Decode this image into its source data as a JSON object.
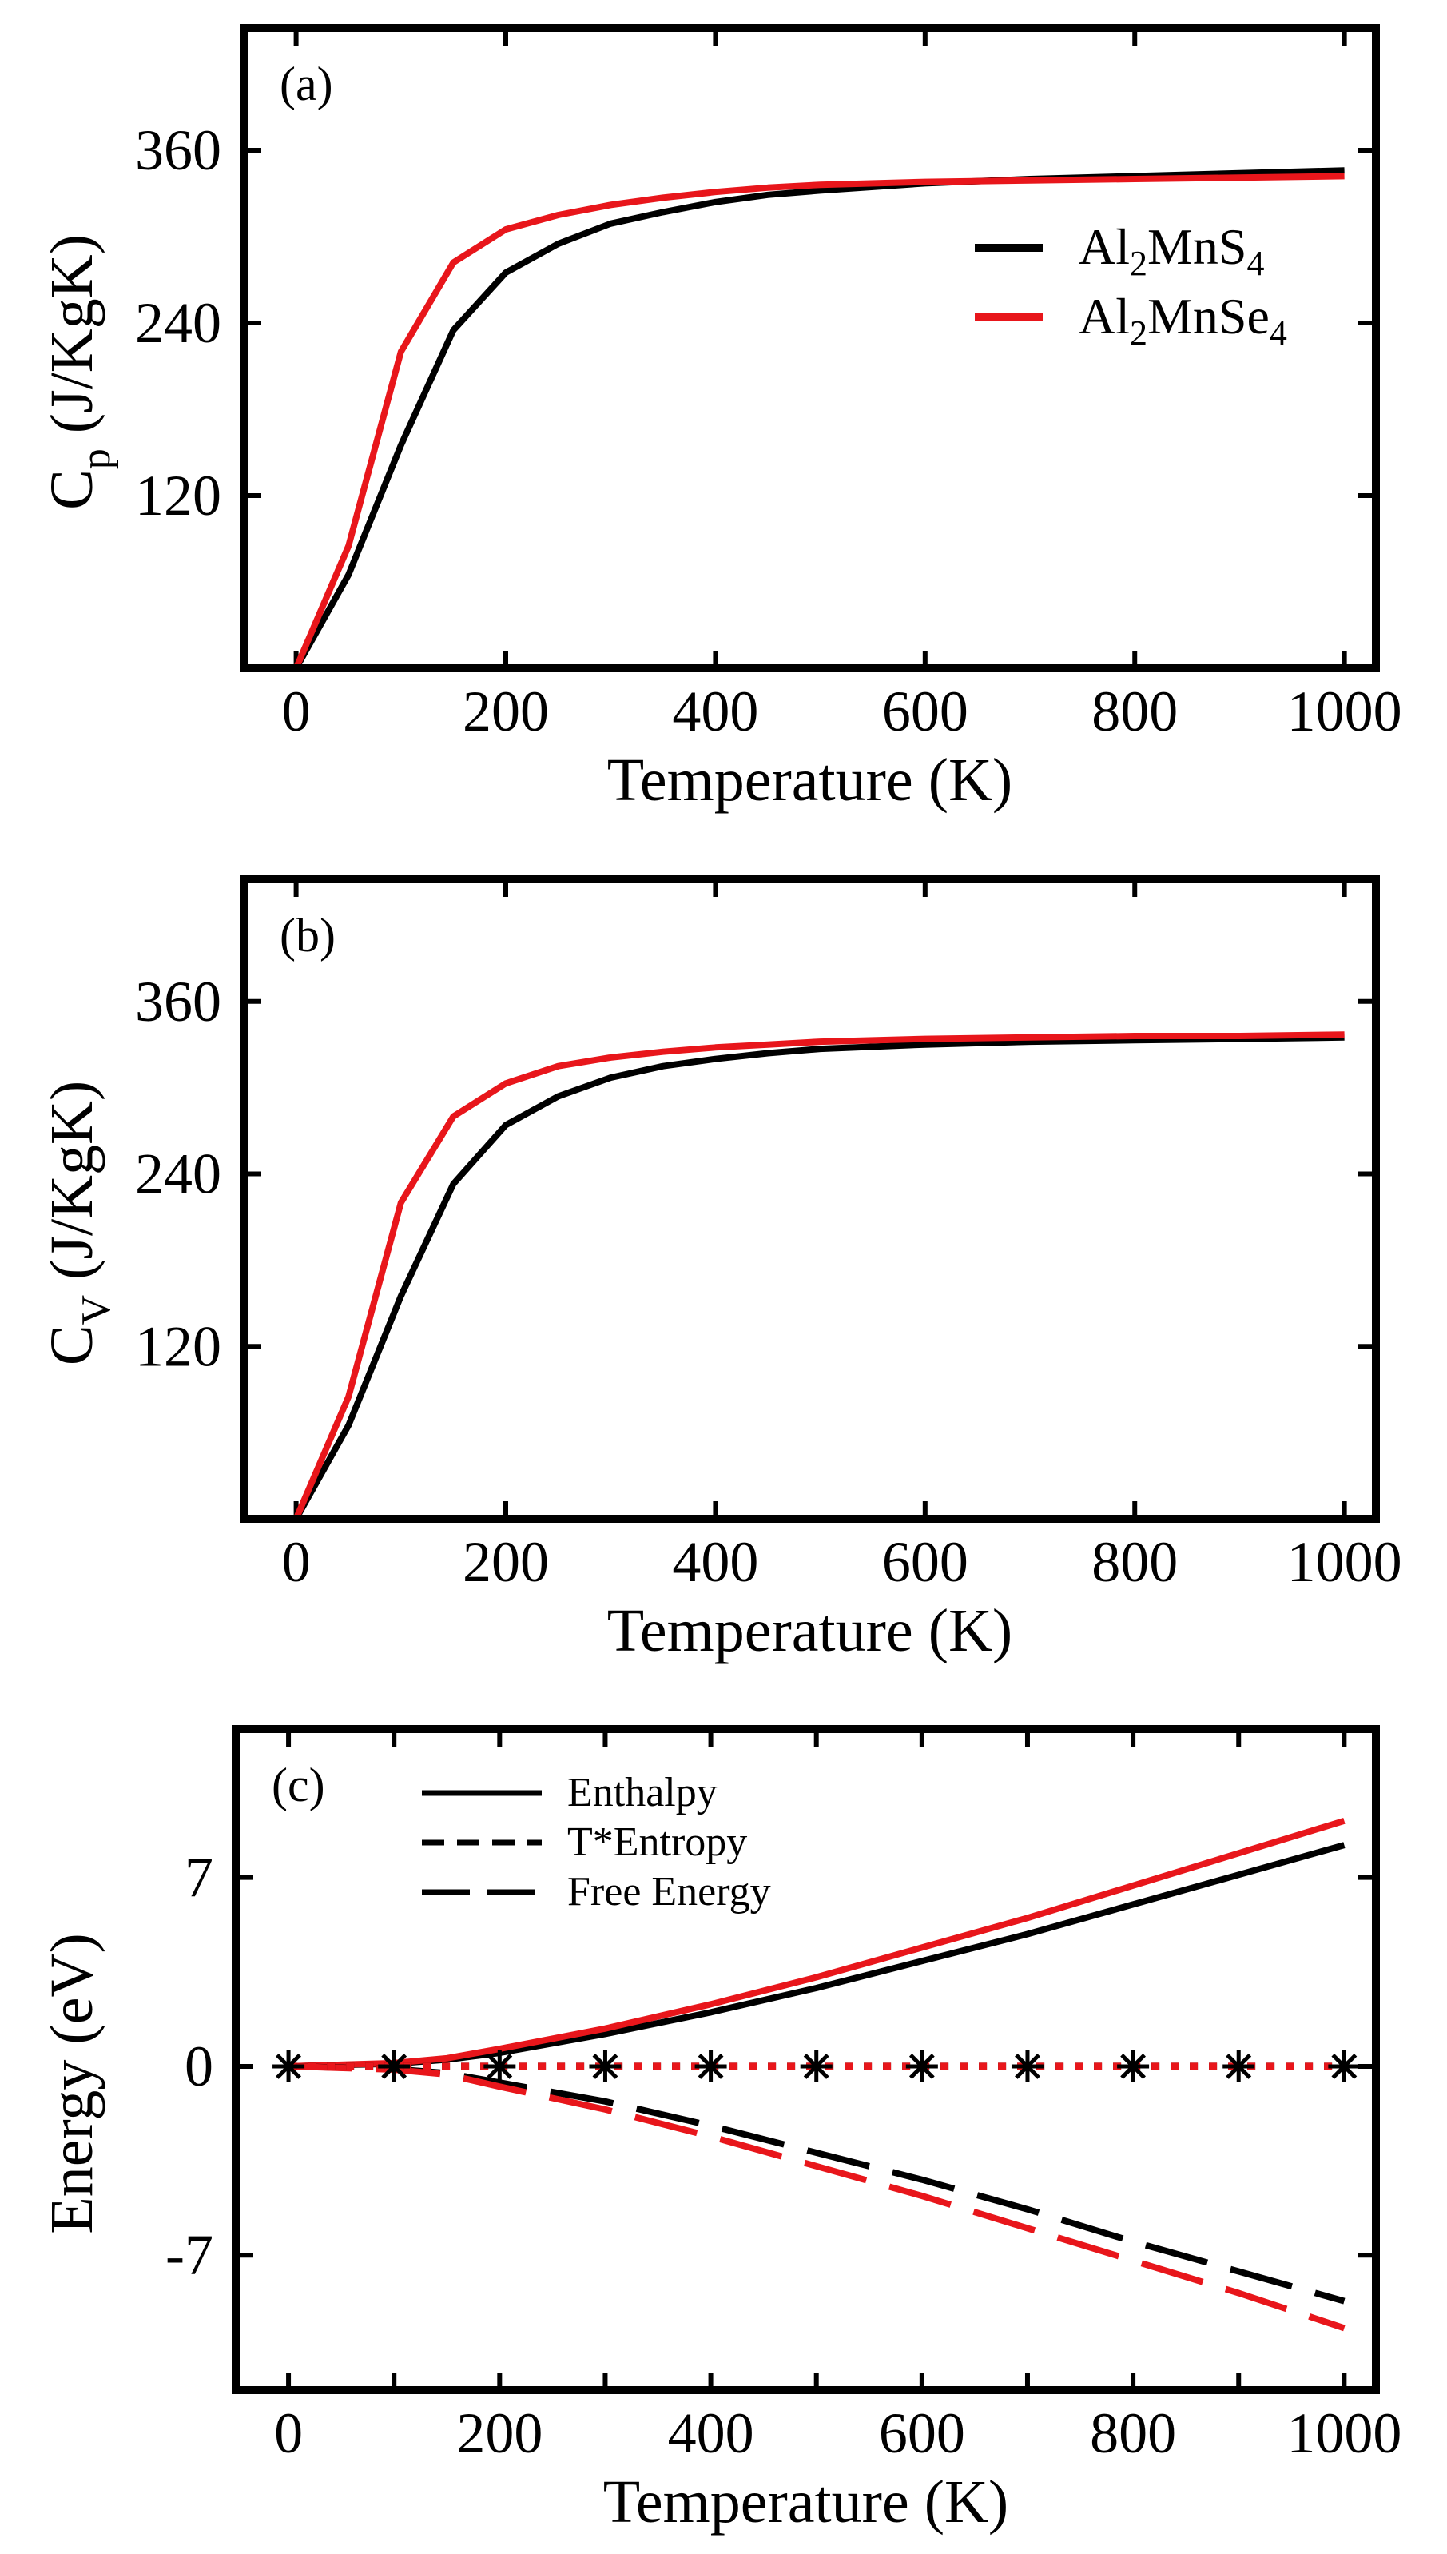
{
  "colors": {
    "black_series": "#000000",
    "red_series": "#e8161b"
  },
  "chart_data": [
    {
      "panel": "(a)",
      "type": "line",
      "xlabel": "Temperature (K)",
      "ylabel_main": "C",
      "ylabel_sub": "p",
      "ylabel_unit": " (J/KgK)",
      "xlim": [
        -50,
        1030
      ],
      "ylim": [
        0,
        445
      ],
      "xticks": [
        0,
        200,
        400,
        600,
        800,
        1000
      ],
      "yticks": [
        120,
        240,
        360
      ],
      "legend": {
        "position": "right",
        "items": [
          {
            "base": "Al",
            "s1": "2",
            "mid": "MnS",
            "s2": "4",
            "color": "#000000"
          },
          {
            "base": "Al",
            "s1": "2",
            "mid": "MnSe",
            "s2": "4",
            "color": "#e8161b"
          }
        ]
      },
      "x": [
        0,
        50,
        100,
        150,
        200,
        250,
        300,
        350,
        400,
        450,
        500,
        600,
        700,
        800,
        900,
        1000
      ],
      "series": [
        {
          "name": "Al2MnS4",
          "color": "#000000",
          "values": [
            0,
            65,
            155,
            235,
            275,
            295,
            309,
            317,
            324,
            329,
            332,
            337,
            340,
            342,
            344,
            346
          ]
        },
        {
          "name": "Al2MnSe4",
          "color": "#e8161b",
          "values": [
            0,
            85,
            220,
            282,
            305,
            315,
            322,
            327,
            331,
            334,
            336,
            338,
            339,
            340,
            341,
            342
          ]
        }
      ]
    },
    {
      "panel": "(b)",
      "type": "line",
      "xlabel": "Temperature (K)",
      "ylabel_main": "C",
      "ylabel_sub": "V",
      "ylabel_unit": " (J/KgK)",
      "xlim": [
        -50,
        1030
      ],
      "ylim": [
        0,
        445
      ],
      "xticks": [
        0,
        200,
        400,
        600,
        800,
        1000
      ],
      "yticks": [
        120,
        240,
        360
      ],
      "x": [
        0,
        50,
        100,
        150,
        200,
        250,
        300,
        350,
        400,
        450,
        500,
        600,
        700,
        800,
        900,
        1000
      ],
      "series": [
        {
          "name": "Al2MnS4",
          "color": "#000000",
          "values": [
            0,
            65,
            155,
            233,
            274,
            294,
            307,
            315,
            320,
            324,
            327,
            330,
            332,
            333,
            334,
            335
          ]
        },
        {
          "name": "Al2MnSe4",
          "color": "#e8161b",
          "values": [
            0,
            85,
            220,
            280,
            303,
            315,
            321,
            325,
            328,
            330,
            332,
            334,
            335,
            336,
            336,
            337
          ]
        }
      ]
    },
    {
      "panel": "(c)",
      "type": "line",
      "xlabel": "Temperature (K)",
      "ylabel": "Energy (eV)",
      "xlim": [
        -50,
        1030
      ],
      "ylim": [
        -12,
        12.5
      ],
      "xticks": [
        0,
        100,
        200,
        300,
        400,
        500,
        600,
        700,
        800,
        900,
        1000
      ],
      "xtick_labels": [
        "0",
        "",
        "200",
        "",
        "400",
        "",
        "600",
        "",
        "800",
        "",
        "1000"
      ],
      "yticks": [
        -7,
        0,
        7
      ],
      "legend": {
        "position": "top-left",
        "items": [
          {
            "label": "Enthalpy",
            "style": "solid"
          },
          {
            "label": "T*Entropy",
            "style": "dashed"
          },
          {
            "label": "Free Energy",
            "style": "long-dashed"
          }
        ]
      },
      "x": [
        0,
        100,
        150,
        200,
        300,
        400,
        500,
        600,
        700,
        800,
        900,
        1000
      ],
      "series": [
        {
          "name": "Al2MnS4 Enthalpy",
          "color": "#000000",
          "style": "solid",
          "values": [
            0,
            0.1,
            0.25,
            0.5,
            1.2,
            2.0,
            2.9,
            3.9,
            4.9,
            6.0,
            7.1,
            8.2
          ]
        },
        {
          "name": "Al2MnSe4 Enthalpy",
          "color": "#e8161b",
          "style": "solid",
          "values": [
            0,
            0.12,
            0.3,
            0.65,
            1.4,
            2.3,
            3.3,
            4.4,
            5.5,
            6.7,
            7.9,
            9.1
          ]
        },
        {
          "name": "Al2MnS4 Free Energy",
          "color": "#000000",
          "style": "long-dashed",
          "values": [
            0,
            -0.1,
            -0.25,
            -0.6,
            -1.3,
            -2.2,
            -3.2,
            -4.2,
            -5.3,
            -6.5,
            -7.6,
            -8.7
          ]
        },
        {
          "name": "Al2MnSe4 Free Energy",
          "color": "#e8161b",
          "style": "long-dashed",
          "values": [
            0,
            -0.12,
            -0.3,
            -0.75,
            -1.6,
            -2.6,
            -3.7,
            -4.8,
            -6.0,
            -7.2,
            -8.4,
            -9.7
          ]
        },
        {
          "name": "Al2MnS4 T*Entropy",
          "color": "#000000",
          "style": "dotted-markers",
          "values": [
            0,
            0,
            0,
            0,
            0,
            0,
            0,
            0,
            0,
            0,
            0,
            0
          ]
        },
        {
          "name": "Al2MnSe4 T*Entropy",
          "color": "#e8161b",
          "style": "dotted",
          "values": [
            0,
            0,
            0,
            0,
            0,
            0,
            0,
            0,
            0,
            0,
            0,
            0
          ]
        }
      ],
      "marker_x": [
        0,
        100,
        200,
        300,
        400,
        500,
        600,
        700,
        800,
        900,
        1000
      ]
    }
  ]
}
